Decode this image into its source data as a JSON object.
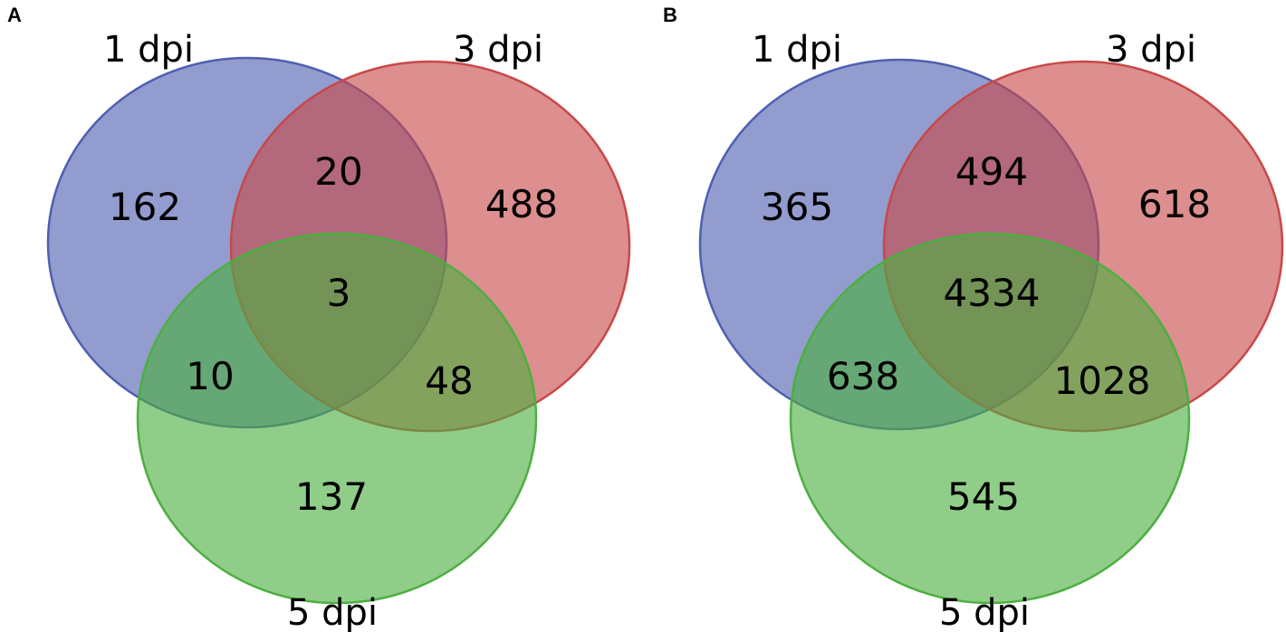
{
  "colors": {
    "set_1dpi_fill": "#4f5fb0",
    "set_1dpi_stroke": "#4f5fb0",
    "set_3dpi_fill": "#c84848",
    "set_3dpi_stroke": "#c84848",
    "set_5dpi_fill": "#4caf40",
    "set_5dpi_stroke": "#4caf40",
    "fill_opacity": 0.62
  },
  "panels": [
    {
      "letter": "A",
      "sets": [
        "1 dpi",
        "3 dpi",
        "5 dpi"
      ],
      "regions": {
        "only_1dpi": "162",
        "only_3dpi": "488",
        "only_5dpi": "137",
        "1dpi_3dpi": "20",
        "1dpi_5dpi": "10",
        "3dpi_5dpi": "48",
        "all_three": "3"
      }
    },
    {
      "letter": "B",
      "sets": [
        "1 dpi",
        "3 dpi",
        "5 dpi"
      ],
      "regions": {
        "only_1dpi": "365",
        "only_3dpi": "618",
        "only_5dpi": "545",
        "1dpi_3dpi": "494",
        "1dpi_5dpi": "638",
        "3dpi_5dpi": "1028",
        "all_three": "4334"
      }
    }
  ]
}
